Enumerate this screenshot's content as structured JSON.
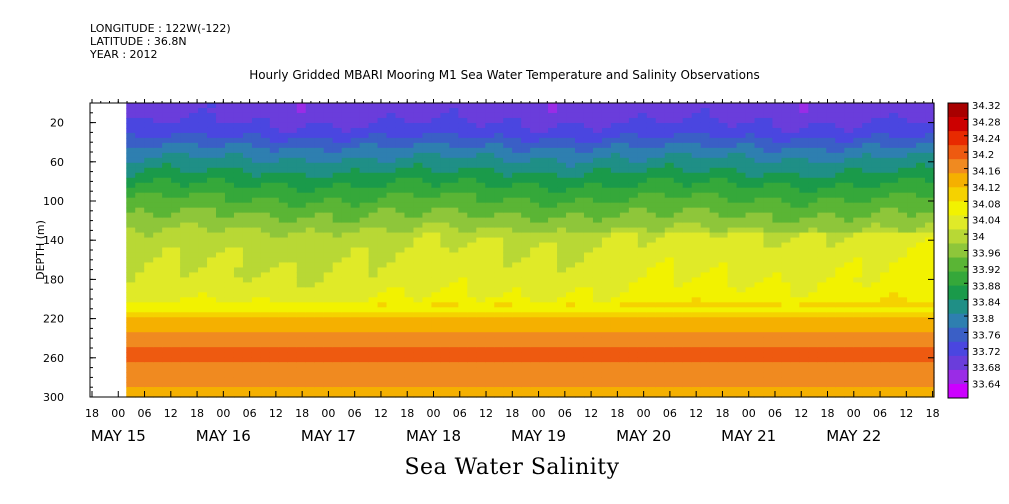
{
  "header": {
    "longitude": "LONGITUDE : 122W(-122)",
    "latitude": "LATITUDE : 36.8N",
    "year": "YEAR : 2012"
  },
  "chart_data": {
    "type": "heatmap",
    "title": "Hourly Gridded MBARI Mooring M1 Sea Water Temperature and Salinity Observations",
    "xlabel": "Sea Water Salinity",
    "ylabel": "DEPTH (m)",
    "x_range": [
      "2012-05-14T18:00",
      "2012-05-22T21:00"
    ],
    "data_start": "2012-05-15T02:00",
    "ylim": [
      300,
      0
    ],
    "y_ticks": [
      20,
      60,
      100,
      140,
      180,
      220,
      260,
      300
    ],
    "x_hour_ticks": [
      "18",
      "00",
      "06",
      "12",
      "18",
      "00",
      "06",
      "12",
      "18",
      "00",
      "06",
      "12",
      "18",
      "00",
      "06",
      "12",
      "18",
      "00",
      "06",
      "12",
      "18",
      "00",
      "06",
      "12",
      "18",
      "00",
      "06",
      "12",
      "18",
      "00",
      "06",
      "12",
      "18"
    ],
    "x_date_labels": [
      "MAY 15",
      "MAY 16",
      "MAY 17",
      "MAY 18",
      "MAY 19",
      "MAY 20",
      "MAY 21",
      "MAY 22"
    ],
    "colorbar": {
      "levels": [
        33.64,
        33.68,
        33.72,
        33.76,
        33.8,
        33.84,
        33.88,
        33.92,
        33.96,
        34,
        34.04,
        34.08,
        34.12,
        34.16,
        34.2,
        34.24,
        34.28,
        34.32
      ],
      "labels": [
        "34.32",
        "34.28",
        "34.24",
        "34.2",
        "34.16",
        "34.12",
        "34.08",
        "34.04",
        "34",
        "33.96",
        "33.92",
        "33.88",
        "33.84",
        "33.8",
        "33.76",
        "33.72",
        "33.68",
        "33.64"
      ],
      "colors": [
        "#cc00ff",
        "#9a2ce6",
        "#6a3ddb",
        "#4a46e0",
        "#3a5fc6",
        "#2e7fb0",
        "#1f8f86",
        "#1a9a4a",
        "#35a83a",
        "#5ab535",
        "#8ec63a",
        "#b8d835",
        "#e0ea28",
        "#f2f200",
        "#f5d200",
        "#f5b000",
        "#f08a20",
        "#ee5a10",
        "#e82a00",
        "#cc0000",
        "#a80000"
      ]
    },
    "profile": [
      {
        "depth": 10,
        "salinity": 33.7
      },
      {
        "depth": 30,
        "salinity": 33.74
      },
      {
        "depth": 50,
        "salinity": 33.82
      },
      {
        "depth": 70,
        "salinity": 33.88
      },
      {
        "depth": 90,
        "salinity": 33.94
      },
      {
        "depth": 110,
        "salinity": 33.99
      },
      {
        "depth": 130,
        "salinity": 34.04
      },
      {
        "depth": 150,
        "salinity": 34.06
      },
      {
        "depth": 180,
        "salinity": 34.08
      },
      {
        "depth": 200,
        "salinity": 34.1
      },
      {
        "depth": 215,
        "salinity": 34.18
      },
      {
        "depth": 235,
        "salinity": 34.25
      },
      {
        "depth": 255,
        "salinity": 34.3
      },
      {
        "depth": 275,
        "salinity": 34.26
      },
      {
        "depth": 300,
        "salinity": 34.22
      }
    ],
    "grid": false
  }
}
